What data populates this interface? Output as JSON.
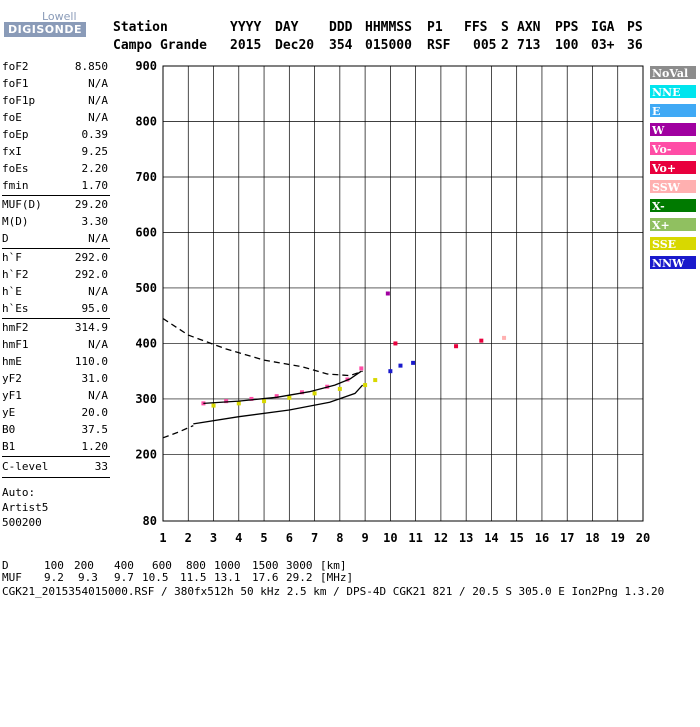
{
  "logo": {
    "line1": "Lowell",
    "line2": "DIGISONDE"
  },
  "header": {
    "labels": [
      "Station",
      "YYYY",
      "DAY",
      "DDD",
      "HHMMSS",
      "P1",
      "FFS",
      "S",
      "AXN",
      "PPS",
      "IGA",
      "PS"
    ],
    "values": [
      "Campo Grande",
      "2015",
      "Dec20",
      "354",
      "015000",
      "RSF",
      "005",
      "2",
      "713",
      "100",
      "03+",
      "36"
    ]
  },
  "params": {
    "group1": [
      {
        "name": "foF2",
        "value": "8.850"
      },
      {
        "name": "foF1",
        "value": "N/A"
      },
      {
        "name": "foF1p",
        "value": "N/A"
      },
      {
        "name": "foE",
        "value": "N/A"
      },
      {
        "name": "foEp",
        "value": "0.39"
      },
      {
        "name": "fxI",
        "value": "9.25"
      },
      {
        "name": "foEs",
        "value": "2.20"
      },
      {
        "name": "fmin",
        "value": "1.70"
      }
    ],
    "group2": [
      {
        "name": "MUF(D)",
        "value": "29.20"
      },
      {
        "name": "M(D)",
        "value": "3.30"
      },
      {
        "name": "D",
        "value": "N/A"
      }
    ],
    "group3": [
      {
        "name": "h`F",
        "value": "292.0"
      },
      {
        "name": "h`F2",
        "value": "292.0"
      },
      {
        "name": "h`E",
        "value": "N/A"
      },
      {
        "name": "h`Es",
        "value": "95.0"
      }
    ],
    "group4": [
      {
        "name": "hmF2",
        "value": "314.9"
      },
      {
        "name": "hmF1",
        "value": "N/A"
      },
      {
        "name": "hmE",
        "value": "110.0"
      },
      {
        "name": "yF2",
        "value": "31.0"
      },
      {
        "name": "yF1",
        "value": "N/A"
      },
      {
        "name": "yE",
        "value": "20.0"
      },
      {
        "name": "B0",
        "value": "37.5"
      },
      {
        "name": "B1",
        "value": "1.20"
      }
    ],
    "clevel": {
      "name": "C-level",
      "value": "33"
    },
    "autoscaling": [
      "Auto:",
      "Artist5",
      "500200"
    ]
  },
  "legend": [
    {
      "label": "NoVal",
      "color": "#8c8c8c"
    },
    {
      "label": "NNE",
      "color": "#00e5ee"
    },
    {
      "label": "E",
      "color": "#3fa9f5"
    },
    {
      "label": "W",
      "color": "#a000a0"
    },
    {
      "label": "Vo-",
      "color": "#ff4da6"
    },
    {
      "label": "Vo+",
      "color": "#e8003d"
    },
    {
      "label": "SSW",
      "color": "#ffb0b0"
    },
    {
      "label": "X-",
      "color": "#007a00"
    },
    {
      "label": "X+",
      "color": "#90c060"
    },
    {
      "label": "SSE",
      "color": "#d8d800"
    },
    {
      "label": "NNW",
      "color": "#1a1acc"
    }
  ],
  "footer": {
    "d_label": "D",
    "d_values": [
      "100",
      "200",
      "400",
      "600",
      "800",
      "1000",
      "1500",
      "3000",
      "[km]"
    ],
    "muf_label": "MUF",
    "muf_values": [
      "9.2",
      "9.3",
      "9.7",
      "10.5",
      "11.5",
      "13.1",
      "17.6",
      "29.2",
      "[MHz]"
    ],
    "info": "CGK21_2015354015000.RSF / 380fx512h 50 kHz 2.5 km / DPS-4D CGK21 821 / 20.5 S 305.0 E Ion2Png 1.3.20"
  },
  "chart_data": {
    "type": "scatter",
    "xlim": [
      1,
      20
    ],
    "ylim": [
      80,
      900
    ],
    "x_ticks": [
      1,
      2,
      3,
      4,
      5,
      6,
      7,
      8,
      9,
      10,
      11,
      12,
      13,
      14,
      15,
      16,
      17,
      18,
      19,
      20
    ],
    "y_ticks": [
      80,
      200,
      300,
      400,
      500,
      600,
      700,
      800,
      900
    ],
    "grid": true,
    "trace_points": [
      {
        "x": 2.6,
        "y": 292,
        "mode": "Vo-"
      },
      {
        "x": 3.5,
        "y": 296,
        "mode": "Vo-"
      },
      {
        "x": 4.5,
        "y": 300,
        "mode": "Vo-"
      },
      {
        "x": 5.5,
        "y": 305,
        "mode": "Vo-"
      },
      {
        "x": 6.5,
        "y": 312,
        "mode": "Vo-"
      },
      {
        "x": 7.5,
        "y": 322,
        "mode": "Vo-"
      },
      {
        "x": 8.3,
        "y": 335,
        "mode": "Vo-"
      },
      {
        "x": 8.85,
        "y": 355,
        "mode": "Vo-"
      },
      {
        "x": 3.0,
        "y": 288,
        "mode": "SSE"
      },
      {
        "x": 4.0,
        "y": 292,
        "mode": "SSE"
      },
      {
        "x": 5.0,
        "y": 296,
        "mode": "SSE"
      },
      {
        "x": 6.0,
        "y": 302,
        "mode": "SSE"
      },
      {
        "x": 7.0,
        "y": 310,
        "mode": "SSE"
      },
      {
        "x": 8.0,
        "y": 318,
        "mode": "SSE"
      },
      {
        "x": 9.0,
        "y": 325,
        "mode": "SSE"
      },
      {
        "x": 9.4,
        "y": 334,
        "mode": "SSE"
      },
      {
        "x": 10.0,
        "y": 350,
        "mode": "NNW"
      },
      {
        "x": 10.4,
        "y": 360,
        "mode": "NNW"
      },
      {
        "x": 10.9,
        "y": 365,
        "mode": "NNW"
      },
      {
        "x": 10.2,
        "y": 400,
        "mode": "Vo+"
      },
      {
        "x": 9.9,
        "y": 490,
        "mode": "W"
      },
      {
        "x": 12.6,
        "y": 395,
        "mode": "Vo+"
      },
      {
        "x": 13.6,
        "y": 405,
        "mode": "Vo+"
      },
      {
        "x": 14.5,
        "y": 410,
        "mode": "SSW"
      }
    ],
    "lines": [
      {
        "name": "profile",
        "style": "solid",
        "points": [
          [
            2.2,
            255
          ],
          [
            4,
            268
          ],
          [
            6,
            280
          ],
          [
            7.6,
            294
          ],
          [
            8.6,
            310
          ],
          [
            8.9,
            325
          ]
        ]
      },
      {
        "name": "o-trace",
        "style": "solid",
        "points": [
          [
            2.6,
            292
          ],
          [
            4,
            296
          ],
          [
            5.5,
            303
          ],
          [
            6.8,
            313
          ],
          [
            7.8,
            325
          ],
          [
            8.4,
            336
          ],
          [
            8.85,
            350
          ]
        ]
      },
      {
        "name": "x-trace",
        "style": "dashed",
        "points": [
          [
            1,
            445
          ],
          [
            2,
            415
          ],
          [
            3.5,
            390
          ],
          [
            5,
            370
          ],
          [
            6.5,
            358
          ],
          [
            7.5,
            345
          ],
          [
            8.4,
            342
          ],
          [
            8.9,
            350
          ]
        ]
      },
      {
        "name": "low-dash",
        "style": "dashed",
        "points": [
          [
            1,
            230
          ],
          [
            1.6,
            240
          ],
          [
            2.2,
            252
          ]
        ]
      }
    ]
  }
}
